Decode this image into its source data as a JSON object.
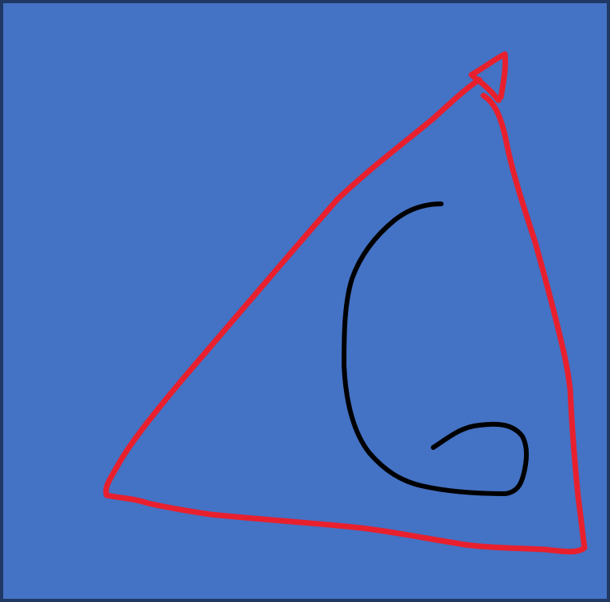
{
  "canvas": {
    "background_color": "#4472c4",
    "border_color": "#1f3864"
  },
  "strokes": [
    {
      "name": "red-triangle-stroke",
      "color": "#e8202e",
      "shape": "triangle"
    },
    {
      "name": "black-curl-stroke",
      "color": "#000000",
      "shape": "hook-curve"
    }
  ]
}
